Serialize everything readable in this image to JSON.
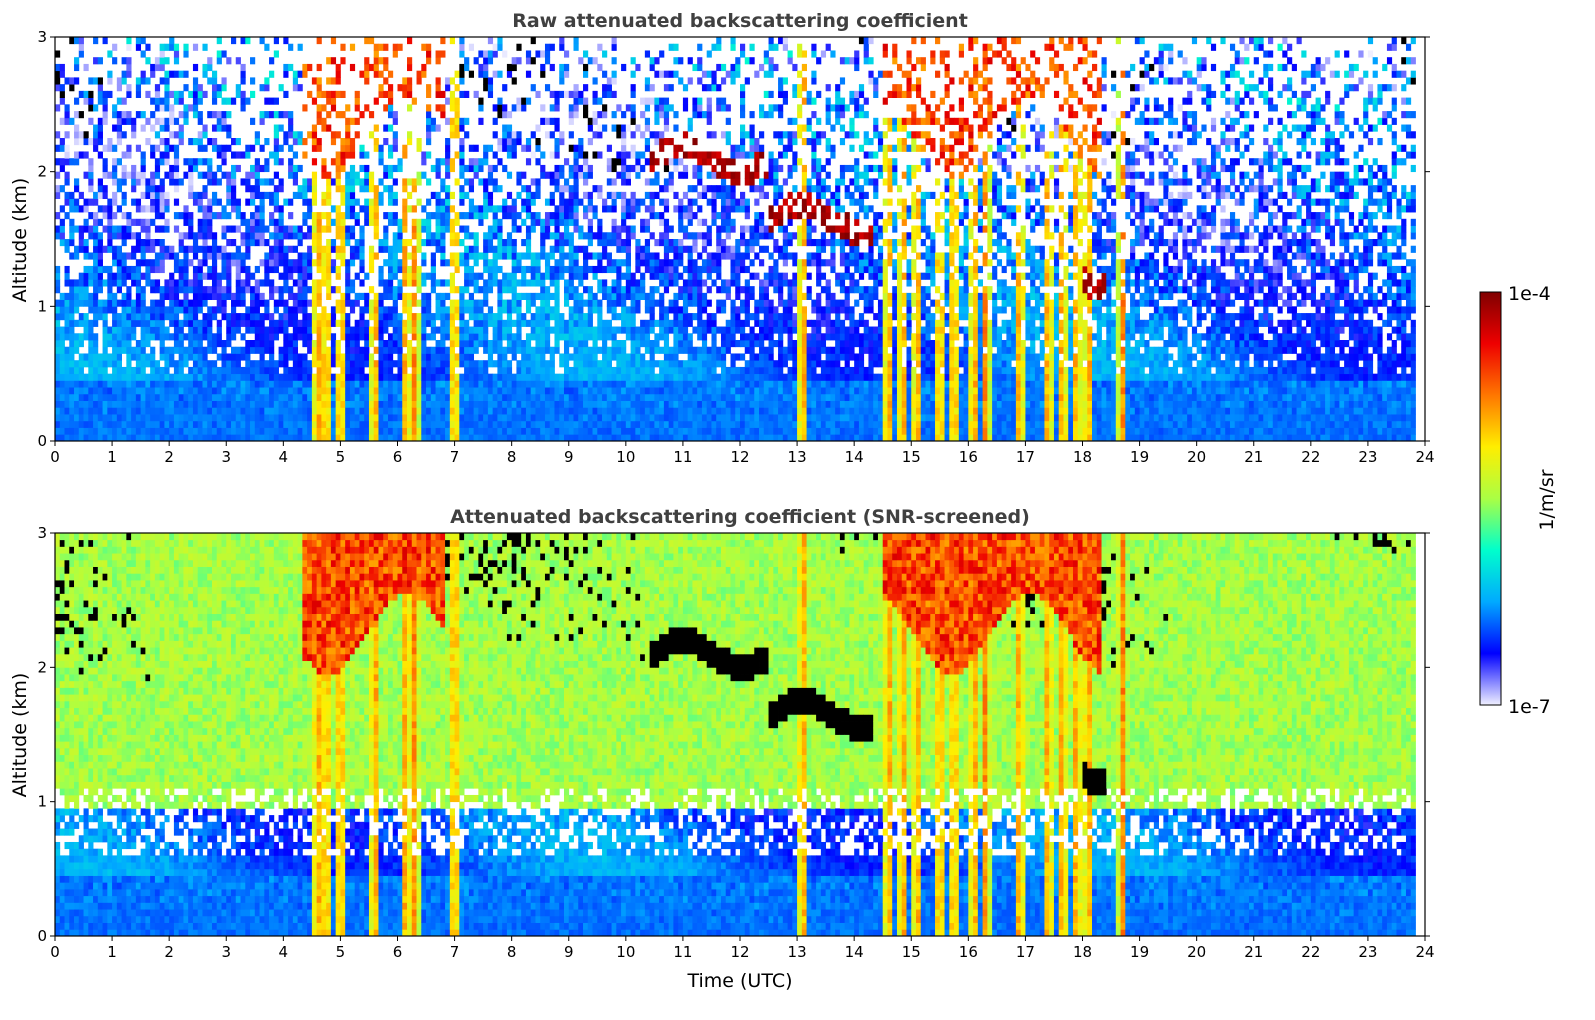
{
  "chart_data": [
    {
      "type": "heatmap",
      "title": "Raw attenuated backscattering coefficient",
      "xlabel": "",
      "ylabel": "Altitude (km)",
      "xlim": [
        0,
        24
      ],
      "ylim": [
        0,
        3
      ],
      "x_ticks": [
        "0",
        "1",
        "2",
        "3",
        "4",
        "5",
        "6",
        "7",
        "8",
        "9",
        "10",
        "11",
        "12",
        "13",
        "14",
        "15",
        "16",
        "17",
        "18",
        "19",
        "20",
        "21",
        "22",
        "23",
        "24"
      ],
      "y_ticks": [
        "0",
        "1",
        "2",
        "3"
      ],
      "scale": "log",
      "features": {
        "precip_shafts_hours": [
          4.6,
          4.75,
          5.0,
          5.6,
          6.15,
          6.3,
          7.0,
          13.1,
          14.6,
          14.85,
          15.1,
          15.5,
          15.75,
          16.1,
          16.3,
          16.9,
          17.4,
          17.65,
          17.9,
          18.1,
          18.7
        ],
        "cloud_layers": [
          {
            "t_start": 10.4,
            "t_end": 12.5,
            "altitude_km": 2.1
          },
          {
            "t_start": 12.5,
            "t_end": 14.3,
            "altitude_km": 1.65
          },
          {
            "t_start": 18.0,
            "t_end": 18.4,
            "altitude_km": 1.25
          }
        ],
        "high_cloud_periods": [
          [
            4.3,
            6.8
          ],
          [
            14.5,
            18.3
          ]
        ]
      }
    },
    {
      "type": "heatmap",
      "title": "Attenuated backscattering coefficient (SNR-screened)",
      "xlabel": "Time (UTC)",
      "ylabel": "Altitude (km)",
      "xlim": [
        0,
        24
      ],
      "ylim": [
        0,
        3
      ],
      "x_ticks": [
        "0",
        "1",
        "2",
        "3",
        "4",
        "5",
        "6",
        "7",
        "8",
        "9",
        "10",
        "11",
        "12",
        "13",
        "14",
        "15",
        "16",
        "17",
        "18",
        "19",
        "20",
        "21",
        "22",
        "23",
        "24"
      ],
      "y_ticks": [
        "0",
        "1",
        "2",
        "3"
      ],
      "scale": "log"
    }
  ],
  "colorbar": {
    "label": "1/m/sr",
    "min_label": "1e-7",
    "max_label": "1e-4",
    "colormap": "jet",
    "colors": [
      "#f0f0ff",
      "#0000ff",
      "#00aaff",
      "#00ffcc",
      "#aaff44",
      "#ffee00",
      "#ff7700",
      "#ee0000",
      "#800000"
    ]
  }
}
